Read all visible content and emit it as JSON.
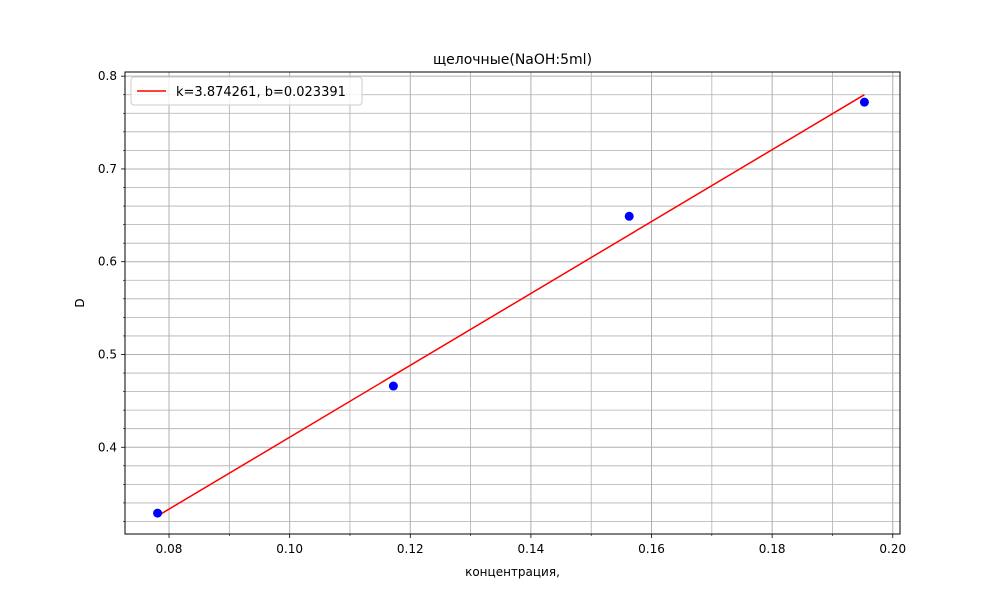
{
  "chart_data": {
    "type": "scatter",
    "title": "щелочные(NaOH:5ml)",
    "xlabel": "концентрация,",
    "ylabel": "D",
    "xlim": [
      0.0727,
      0.2012
    ],
    "ylim": [
      0.3065,
      0.8045
    ],
    "x_ticks": [
      "0.08",
      "0.10",
      "0.12",
      "0.14",
      "0.16",
      "0.18",
      "0.20"
    ],
    "y_ticks": [
      "0.4",
      "0.5",
      "0.6",
      "0.7",
      "0.8"
    ],
    "grid": true,
    "minor_grid": true,
    "legend_position": "top-left",
    "points": [
      {
        "x": 0.0781,
        "y": 0.329
      },
      {
        "x": 0.1172,
        "y": 0.466
      },
      {
        "x": 0.1563,
        "y": 0.649
      },
      {
        "x": 0.1953,
        "y": 0.772
      }
    ],
    "fit_line": {
      "label": "k=3.874261, b=0.023391",
      "k": 3.874261,
      "b": 0.023391,
      "x_range": [
        0.0781,
        0.1953
      ]
    },
    "colors": {
      "points": "#0000ff",
      "fit_line": "#ff0000",
      "grid": "#b0b0b0"
    }
  }
}
